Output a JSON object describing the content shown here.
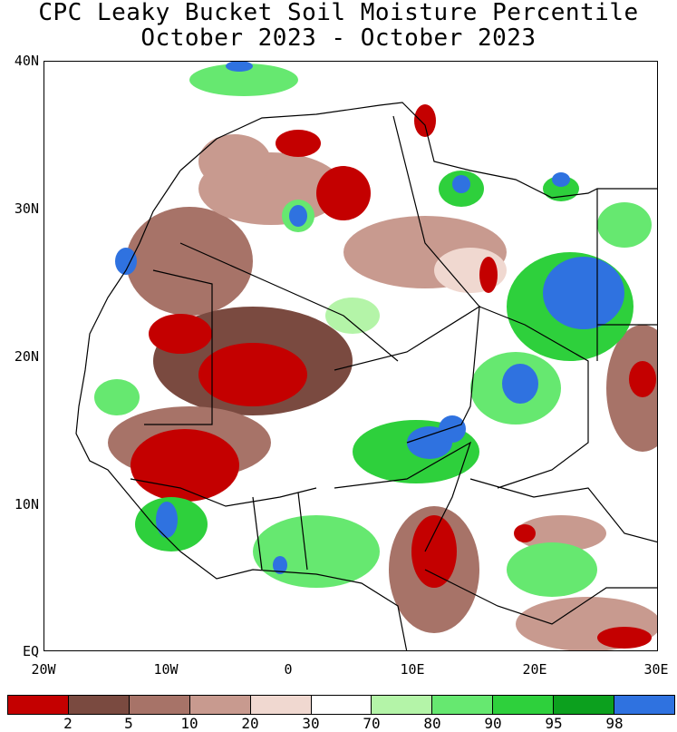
{
  "title_line1": "CPC Leaky Bucket Soil Moisture Percentile",
  "title_line2": "October 2023 - October 2023",
  "y_axis_labels": [
    "40N",
    "30N",
    "20N",
    "10N",
    "EQ"
  ],
  "x_axis_labels": [
    "20W",
    "10W",
    "0",
    "10E",
    "20E",
    "30E"
  ],
  "legend": {
    "colors": [
      "#c40000",
      "#7a4a40",
      "#a77368",
      "#c89a8f",
      "#f0d8d0",
      "#ffffff",
      "#b4f4a8",
      "#66e870",
      "#2ed03c",
      "#0ca01e",
      "#2f72e0"
    ],
    "labels": [
      "2",
      "5",
      "10",
      "20",
      "30",
      "70",
      "80",
      "90",
      "95",
      "98"
    ]
  },
  "map_colors": {
    "dry_extreme": "#c40000",
    "dry_severe": "#7a4a40",
    "dry_moderate": "#a77368",
    "dry_light": "#c89a8f",
    "dry_slight": "#f0d8d0",
    "wet_slight": "#b4f4a8",
    "wet_light": "#66e870",
    "wet_moderate": "#2ed03c",
    "wet_severe": "#0ca01e",
    "wet_extreme": "#2f72e0"
  }
}
